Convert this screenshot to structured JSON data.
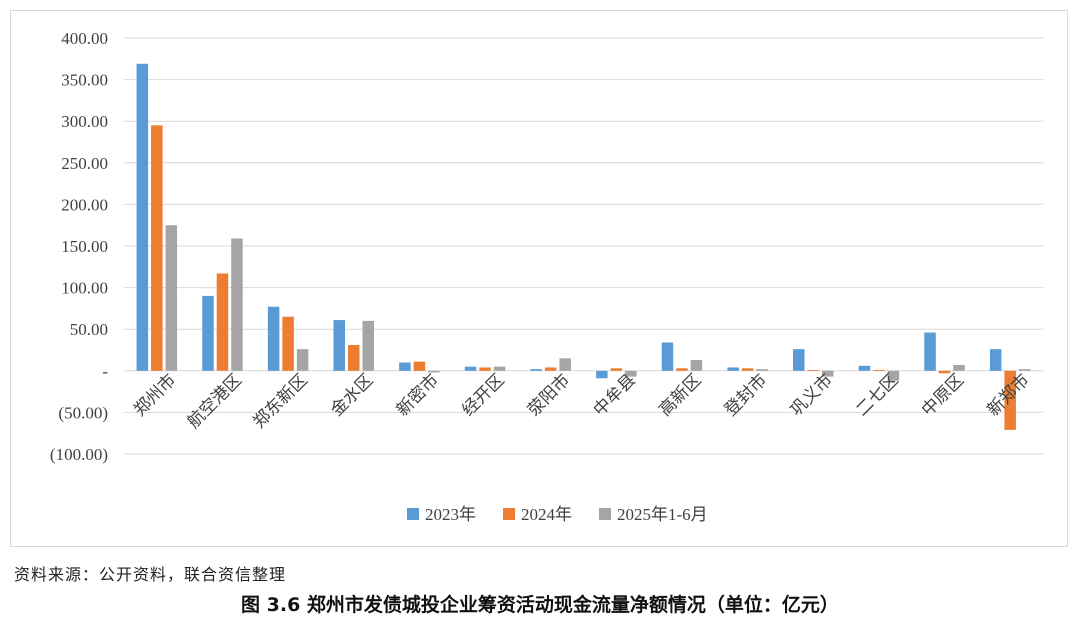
{
  "source_note": "资料来源：公开资料，联合资信整理",
  "caption": "图 3.6   郑州市发债城投企业筹资活动现金流量净额情况（单位：亿元）",
  "chart_data": {
    "type": "bar",
    "title": "",
    "xlabel": "",
    "ylabel": "",
    "ylim": [
      -100,
      400
    ],
    "y_ticks": [
      400,
      350,
      300,
      250,
      200,
      150,
      100,
      50,
      0,
      -50,
      -100
    ],
    "y_tick_labels": [
      "400.00",
      "350.00",
      "300.00",
      "250.00",
      "200.00",
      "150.00",
      "100.00",
      "50.00",
      "-",
      "(50.00)",
      "(100.00)"
    ],
    "grid": true,
    "legend_position": "bottom",
    "categories": [
      "郑州市",
      "航空港区",
      "郑东新区",
      "金水区",
      "新密市",
      "经开区",
      "荥阳市",
      "中牟县",
      "高新区",
      "登封市",
      "巩义市",
      "二七区",
      "中原区",
      "新郑市"
    ],
    "series": [
      {
        "name": "2023年",
        "color": "#5b9bd5",
        "values": [
          369,
          90,
          77,
          61,
          10,
          5,
          2,
          -9,
          34,
          4,
          26,
          6,
          46,
          26
        ]
      },
      {
        "name": "2024年",
        "color": "#ed7d31",
        "values": [
          295,
          117,
          65,
          31,
          11,
          4,
          4,
          3,
          3,
          3,
          1,
          1,
          -3,
          -71
        ]
      },
      {
        "name": "2025年1-6月",
        "color": "#a5a5a5",
        "values": [
          175,
          159,
          26,
          60,
          -2,
          5,
          15,
          -7,
          13,
          2,
          -7,
          -12,
          7,
          2
        ]
      }
    ]
  }
}
